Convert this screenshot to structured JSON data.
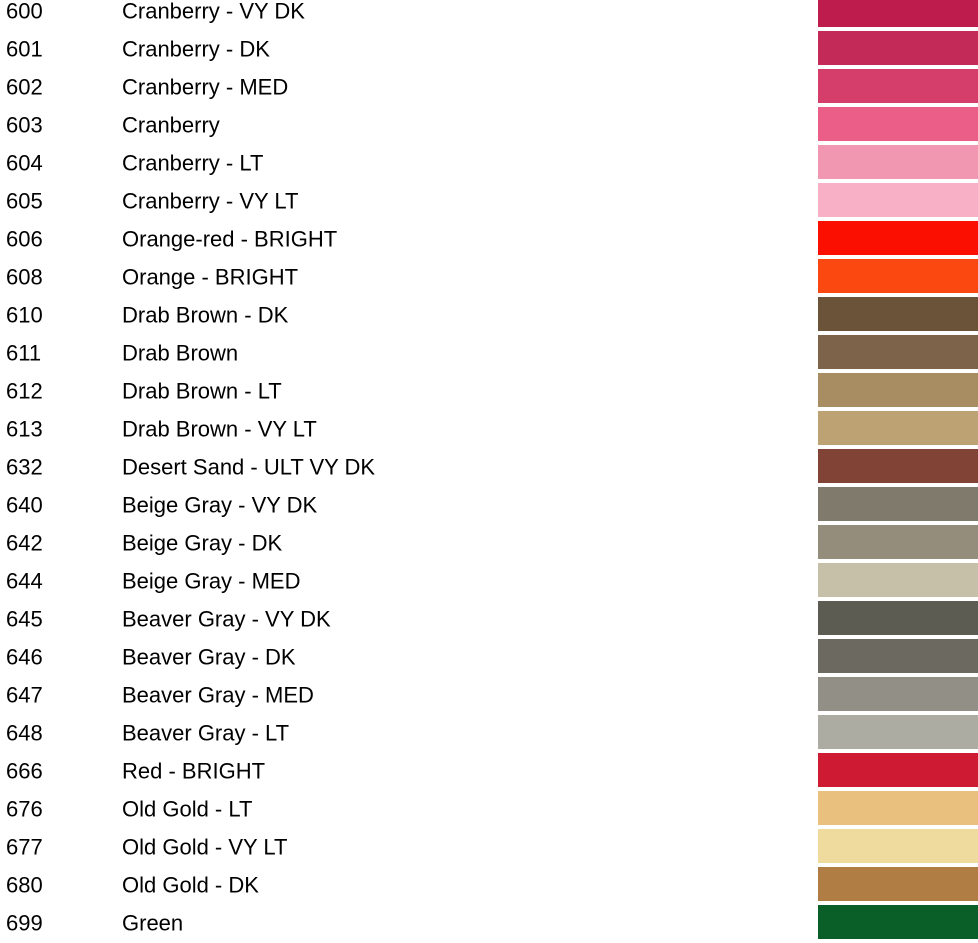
{
  "layout_colors": {
    "background": "#ffffff",
    "text": "#000000"
  },
  "chart_data": {
    "type": "table",
    "columns": [
      "code",
      "name",
      "color"
    ],
    "rows": [
      {
        "code": "600",
        "name": "Cranberry - VY DK",
        "color": "#BE1C4D"
      },
      {
        "code": "601",
        "name": "Cranberry - DK",
        "color": "#C42A58"
      },
      {
        "code": "602",
        "name": "Cranberry - MED",
        "color": "#D53E6B"
      },
      {
        "code": "603",
        "name": "Cranberry",
        "color": "#EB5E87"
      },
      {
        "code": "604",
        "name": "Cranberry - LT",
        "color": "#F297B2"
      },
      {
        "code": "605",
        "name": "Cranberry - VY LT",
        "color": "#F8B0C7"
      },
      {
        "code": "606",
        "name": "Orange-red - BRIGHT",
        "color": "#FA0F00"
      },
      {
        "code": "608",
        "name": "Orange - BRIGHT",
        "color": "#FB4810"
      },
      {
        "code": "610",
        "name": "Drab Brown - DK",
        "color": "#6B5339"
      },
      {
        "code": "611",
        "name": "Drab Brown",
        "color": "#7D6349"
      },
      {
        "code": "612",
        "name": "Drab Brown - LT",
        "color": "#A98D62"
      },
      {
        "code": "613",
        "name": "Drab Brown - VY LT",
        "color": "#BDA374"
      },
      {
        "code": "632",
        "name": "Desert Sand - ULT VY DK",
        "color": "#814335"
      },
      {
        "code": "640",
        "name": "Beige Gray - VY DK",
        "color": "#807A6C"
      },
      {
        "code": "642",
        "name": "Beige Gray - DK",
        "color": "#958D7B"
      },
      {
        "code": "644",
        "name": "Beige Gray - MED",
        "color": "#C5C0A7"
      },
      {
        "code": "645",
        "name": "Beaver Gray - VY DK",
        "color": "#5C5C52"
      },
      {
        "code": "646",
        "name": "Beaver Gray - DK",
        "color": "#6C6960"
      },
      {
        "code": "647",
        "name": "Beaver Gray - MED",
        "color": "#918F86"
      },
      {
        "code": "648",
        "name": "Beaver Gray - LT",
        "color": "#ACACA2"
      },
      {
        "code": "666",
        "name": "Red - BRIGHT",
        "color": "#CF1A34"
      },
      {
        "code": "676",
        "name": "Old Gold - LT",
        "color": "#EAC07F"
      },
      {
        "code": "677",
        "name": "Old Gold - VY LT",
        "color": "#EFDB9D"
      },
      {
        "code": "680",
        "name": "Old Gold - DK",
        "color": "#B07D44"
      },
      {
        "code": "699",
        "name": "Green",
        "color": "#0A5F28"
      }
    ]
  }
}
